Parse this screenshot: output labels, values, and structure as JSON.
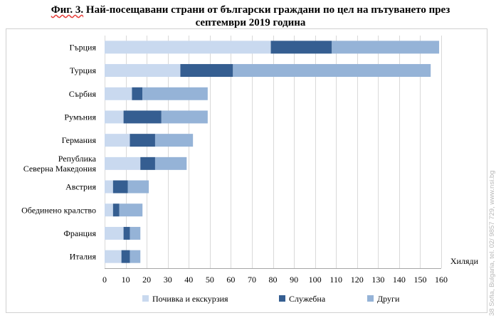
{
  "title": {
    "prefix": "Фиг. 3.",
    "line1": " Най-посещавани страни от български граждани по цел на пътуването през",
    "line2": "септември 2019 година"
  },
  "chart_data": {
    "type": "bar",
    "orientation": "horizontal",
    "stacked": true,
    "categories": [
      [
        "Гърция"
      ],
      [
        "Турция"
      ],
      [
        "Сърбия"
      ],
      [
        "Румъния"
      ],
      [
        "Германия"
      ],
      [
        "Република",
        "Северна Македония"
      ],
      [
        "Австрия"
      ],
      [
        "Обединено кралство"
      ],
      [
        "Франция"
      ],
      [
        "Италия"
      ]
    ],
    "series": [
      {
        "name": "Почивка и екскурзия",
        "color": "#c9d9ef",
        "values": [
          79,
          36,
          13,
          9,
          12,
          17,
          4,
          4,
          9,
          8
        ]
      },
      {
        "name": "Служебна",
        "color": "#355e91",
        "values": [
          29,
          25,
          5,
          18,
          12,
          7,
          7,
          3,
          3,
          4
        ]
      },
      {
        "name": "Други",
        "color": "#95b3d7",
        "values": [
          51,
          94,
          31,
          22,
          18,
          15,
          10,
          11,
          5,
          5
        ]
      }
    ],
    "xlim": [
      0,
      160
    ],
    "xticks": [
      0,
      10,
      20,
      30,
      40,
      50,
      60,
      70,
      80,
      90,
      100,
      110,
      120,
      130,
      140,
      150,
      160
    ],
    "xlabel": "Хиляди",
    "grid": true,
    "legend_position": "bottom"
  },
  "watermark": "38 Sofia, Bulgaria, tel. 02/ 9857 729, www.nsi.bg"
}
